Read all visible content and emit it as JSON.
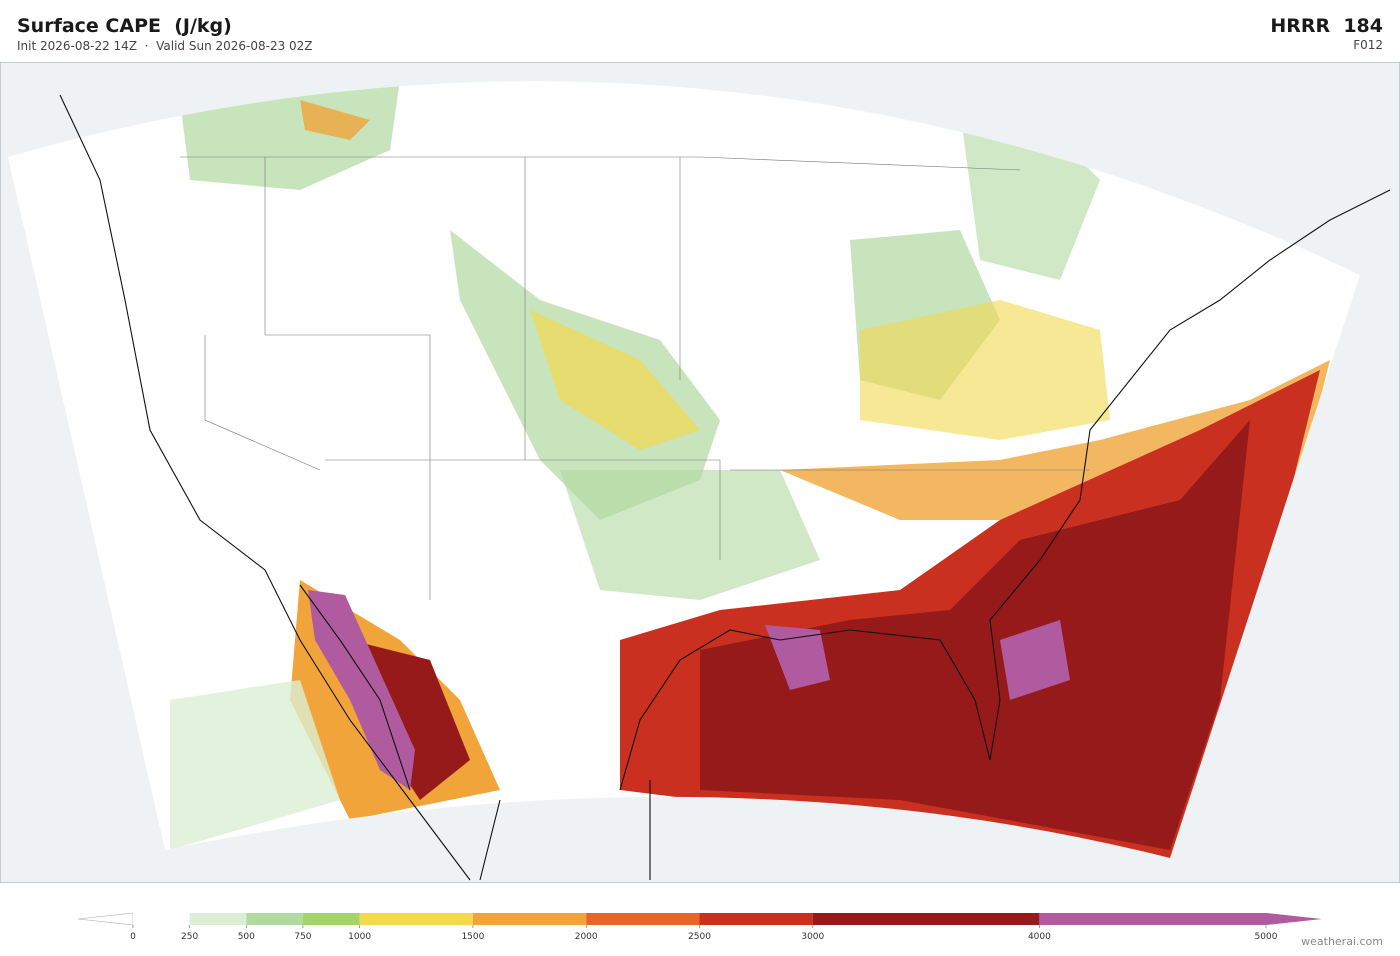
{
  "header": {
    "title": "Surface CAPE  (J/kg)",
    "subtitle": "Init 2026-08-22 14Z  ·  Valid Sun 2026-08-23 02Z",
    "model": "HRRR  184",
    "forecast_hour": "F012"
  },
  "colorbar": {
    "lim": [
      0,
      5000
    ],
    "ticks": [
      0,
      250,
      500,
      750,
      1000,
      1500,
      2000,
      2500,
      3000,
      4000,
      5000
    ],
    "bands": [
      {
        "from": 0,
        "to": 250,
        "color": "#ffffff"
      },
      {
        "from": 250,
        "to": 500,
        "color": "#dcefd4"
      },
      {
        "from": 500,
        "to": 750,
        "color": "#b1d9a0"
      },
      {
        "from": 750,
        "to": 1000,
        "color": "#a4d36e"
      },
      {
        "from": 1000,
        "to": 1500,
        "color": "#f2d94e"
      },
      {
        "from": 1500,
        "to": 2000,
        "color": "#f0a43a"
      },
      {
        "from": 2000,
        "to": 2500,
        "color": "#e5652a"
      },
      {
        "from": 2500,
        "to": 3000,
        "color": "#c9301f"
      },
      {
        "from": 3000,
        "to": 4000,
        "color": "#961a1a"
      },
      {
        "from": 4000,
        "to": 5000,
        "color": "#b05aa0"
      }
    ]
  },
  "watermark": "weatherai.com"
}
